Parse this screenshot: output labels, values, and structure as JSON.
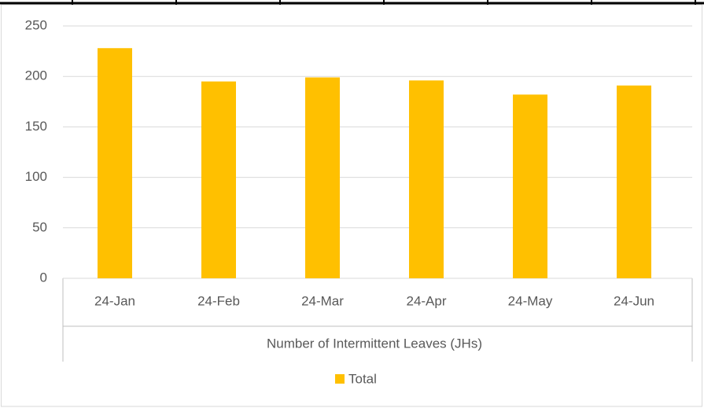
{
  "chart_data": {
    "type": "bar",
    "categories": [
      "24-Jan",
      "24-Feb",
      "24-Mar",
      "24-Apr",
      "24-May",
      "24-Jun"
    ],
    "values": [
      228,
      195,
      199,
      196,
      182,
      191
    ],
    "color": "#ffc000",
    "xlabel": "Number of Intermittent Leaves (JHs)",
    "series_name": "Total",
    "ylim": [
      0,
      250
    ],
    "yticks": [
      0,
      50,
      100,
      150,
      200,
      250
    ],
    "grid": true,
    "legend": "bottom"
  }
}
